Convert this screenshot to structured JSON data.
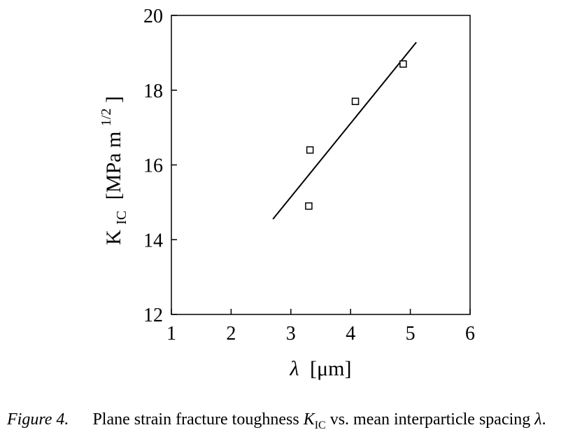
{
  "chart_data": {
    "type": "scatter",
    "xlim": [
      1,
      6
    ],
    "ylim": [
      12,
      20
    ],
    "x_ticks": [
      "1",
      "2",
      "3",
      "4",
      "5",
      "6"
    ],
    "y_ticks": [
      "12",
      "14",
      "16",
      "18",
      "20"
    ],
    "xlabel_symbol": "λ",
    "xlabel_unit": "[μm]",
    "ylabel_main": "K",
    "ylabel_sub": "IC",
    "ylabel_unit": "[MPa m",
    "ylabel_sup": "1/2",
    "ylabel_close": "]",
    "points": [
      {
        "x": 3.3,
        "y": 14.9
      },
      {
        "x": 3.32,
        "y": 16.4
      },
      {
        "x": 4.08,
        "y": 17.7
      },
      {
        "x": 4.88,
        "y": 18.7
      }
    ],
    "fit_line": {
      "x": [
        2.7,
        5.1
      ],
      "y": [
        14.55,
        19.28
      ]
    },
    "marker": "open-square",
    "grid": false
  },
  "caption": {
    "figure_label": "Figure 4.",
    "text_before": "Plane strain fracture toughness ",
    "k_symbol": "K",
    "k_sub": "IC",
    "text_middle": " vs. mean interparticle spacing ",
    "lambda_symbol": "λ",
    "text_end": "."
  }
}
